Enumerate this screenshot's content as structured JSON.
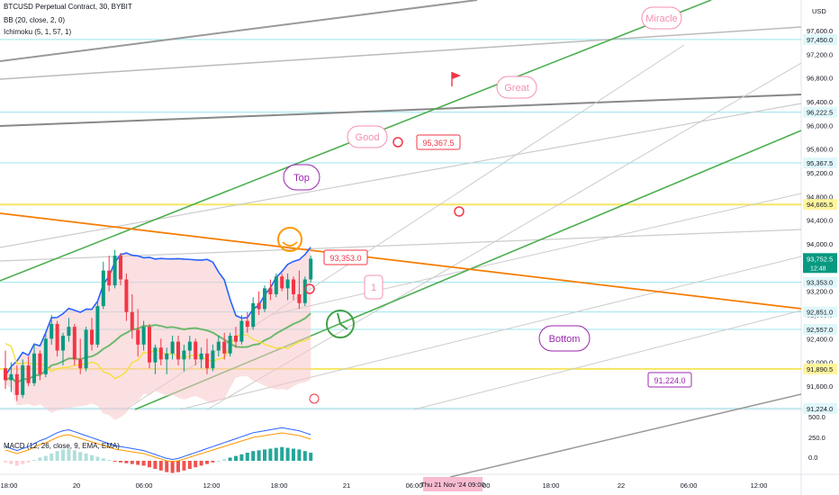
{
  "legend": {
    "title": "BTCUSD Perpetual Contract, 30, BYBIT",
    "bb": "BB (20, close, 2, 0)",
    "ichimoku": "Ichimoku (5, 1, 57, 1)",
    "macd": "MACD (12, 26, close, 9, EMA, EMA)"
  },
  "currency": "USD",
  "colors": {
    "up": "#089981",
    "down": "#f23645",
    "bb_fill": "#f8c6ca",
    "bb_line": "#2962ff",
    "green_line": "#4caf50",
    "yellow_line": "#f4e03a",
    "orange_line": "#f57c00",
    "pink_note": "#f48fb1",
    "purple_note": "#9c27b0",
    "gray_line": "#b2b5be",
    "cyan_line": "#80deea"
  },
  "chart_data": [
    {
      "type": "candlestick",
      "y_axis": {
        "min": 91000,
        "max": 98000,
        "ticks": [
          97600,
          97200,
          96800,
          96400,
          96000,
          95600,
          95200,
          94800,
          94400,
          94000,
          93600,
          93200,
          92800,
          92400,
          92000,
          91600
        ]
      },
      "x_ticks": [
        "18:00",
        "20",
        "06:00",
        "12:00",
        "18:00",
        "21",
        "06:00",
        "12:00",
        "18:00",
        "22",
        "06:00",
        "12:00"
      ],
      "crosshair_label": "Thu 21 Nov '24   09:00",
      "price_labels": [
        {
          "text": "97,450.0",
          "value": 97450,
          "style": "cyan"
        },
        {
          "text": "96,222.5",
          "value": 96222.5,
          "style": "cyan"
        },
        {
          "text": "95,367.5",
          "value": 95367.5,
          "style": "cyan"
        },
        {
          "text": "94,665.5",
          "value": 94665.5,
          "style": "yellow"
        },
        {
          "text": "93,752.5",
          "value": 93752.5,
          "style": "current",
          "sub": "12:48"
        },
        {
          "text": "93,353.0",
          "value": 93353,
          "style": "cyan"
        },
        {
          "text": "92,851.0",
          "value": 92851,
          "style": "cyan"
        },
        {
          "text": "92,557.0",
          "value": 92557,
          "style": "cyan"
        },
        {
          "text": "91,890.5",
          "value": 91890.5,
          "style": "yellow"
        },
        {
          "text": "91,224.0",
          "value": 91224,
          "style": "cyan"
        }
      ],
      "annotations": [
        {
          "text": "Miracle",
          "kind": "pink-bubble"
        },
        {
          "text": "Great",
          "kind": "pink-bubble"
        },
        {
          "text": "Good",
          "kind": "pink-bubble"
        },
        {
          "text": "Top",
          "kind": "purple-bubble"
        },
        {
          "text": "Bottom",
          "kind": "purple-bubble"
        },
        {
          "text": "1",
          "kind": "pink-box"
        },
        {
          "text": "95,367.5",
          "kind": "price-note"
        },
        {
          "text": "93,353.0",
          "kind": "price-note"
        },
        {
          "text": "91,224.0",
          "kind": "price-note"
        }
      ],
      "candles": [
        [
          91900,
          92200,
          91550,
          91700
        ],
        [
          91700,
          92000,
          91500,
          91800
        ],
        [
          91800,
          91950,
          91350,
          91450
        ],
        [
          91450,
          92050,
          91400,
          91950
        ],
        [
          91950,
          92100,
          91600,
          91650
        ],
        [
          91650,
          92300,
          91600,
          92150
        ],
        [
          92150,
          92200,
          91700,
          91800
        ],
        [
          91800,
          92500,
          91750,
          92400
        ],
        [
          92400,
          92800,
          92300,
          92650
        ],
        [
          92650,
          92700,
          92100,
          92200
        ],
        [
          92200,
          92500,
          91950,
          92450
        ],
        [
          92450,
          92750,
          92350,
          92600
        ],
        [
          92600,
          92650,
          91950,
          92050
        ],
        [
          92050,
          92400,
          91800,
          91900
        ],
        [
          91900,
          92600,
          91850,
          92550
        ],
        [
          92550,
          92750,
          92200,
          92300
        ],
        [
          92300,
          93050,
          92250,
          92950
        ],
        [
          92950,
          93700,
          92900,
          93550
        ],
        [
          93550,
          93800,
          93200,
          93300
        ],
        [
          93300,
          93900,
          93250,
          93800
        ],
        [
          93800,
          93850,
          93300,
          93400
        ],
        [
          93400,
          93500,
          92700,
          92850
        ],
        [
          92850,
          93150,
          92400,
          92550
        ],
        [
          92550,
          92900,
          92100,
          92300
        ],
        [
          92300,
          92700,
          92200,
          92600
        ],
        [
          92600,
          92650,
          91900,
          92000
        ],
        [
          92000,
          92300,
          91800,
          92250
        ],
        [
          92250,
          92400,
          91950,
          92050
        ],
        [
          92050,
          92250,
          91800,
          92150
        ],
        [
          92150,
          92450,
          92050,
          92350
        ],
        [
          92350,
          92450,
          91950,
          92050
        ],
        [
          92050,
          92300,
          91850,
          92200
        ],
        [
          92200,
          92450,
          92050,
          92350
        ],
        [
          92350,
          92400,
          91950,
          92050
        ],
        [
          92050,
          92250,
          91900,
          92150
        ],
        [
          92150,
          92400,
          91800,
          91900
        ],
        [
          91900,
          92300,
          91850,
          92200
        ],
        [
          92200,
          92450,
          92100,
          92350
        ],
        [
          92350,
          92500,
          92050,
          92150
        ],
        [
          92150,
          92500,
          92100,
          92450
        ],
        [
          92450,
          92600,
          92250,
          92350
        ],
        [
          92350,
          92800,
          92300,
          92700
        ],
        [
          92700,
          92850,
          92500,
          92600
        ],
        [
          92600,
          93100,
          92550,
          93000
        ],
        [
          93000,
          93200,
          92800,
          92900
        ],
        [
          92900,
          93300,
          92850,
          93250
        ],
        [
          93250,
          93400,
          93050,
          93150
        ],
        [
          93150,
          93500,
          93100,
          93450
        ],
        [
          93450,
          93500,
          93200,
          93250
        ],
        [
          93250,
          93500,
          93050,
          93400
        ],
        [
          93400,
          93450,
          93050,
          93150
        ],
        [
          93150,
          93550,
          92900,
          93000
        ],
        [
          93000,
          93450,
          92950,
          93400
        ],
        [
          93400,
          93800,
          93350,
          93750
        ]
      ]
    },
    {
      "type": "bar",
      "name": "MACD",
      "y_ticks": [
        500,
        250,
        0
      ],
      "values": [
        -20,
        -40,
        -60,
        -40,
        -20,
        10,
        40,
        60,
        90,
        120,
        140,
        150,
        130,
        110,
        90,
        70,
        50,
        30,
        10,
        -10,
        -20,
        -30,
        -40,
        -50,
        -60,
        -80,
        -100,
        -120,
        -140,
        -150,
        -140,
        -120,
        -100,
        -80,
        -60,
        -40,
        -20,
        0,
        20,
        40,
        60,
        80,
        100,
        120,
        130,
        140,
        150,
        160,
        170,
        160,
        150,
        140,
        120,
        100
      ]
    }
  ]
}
